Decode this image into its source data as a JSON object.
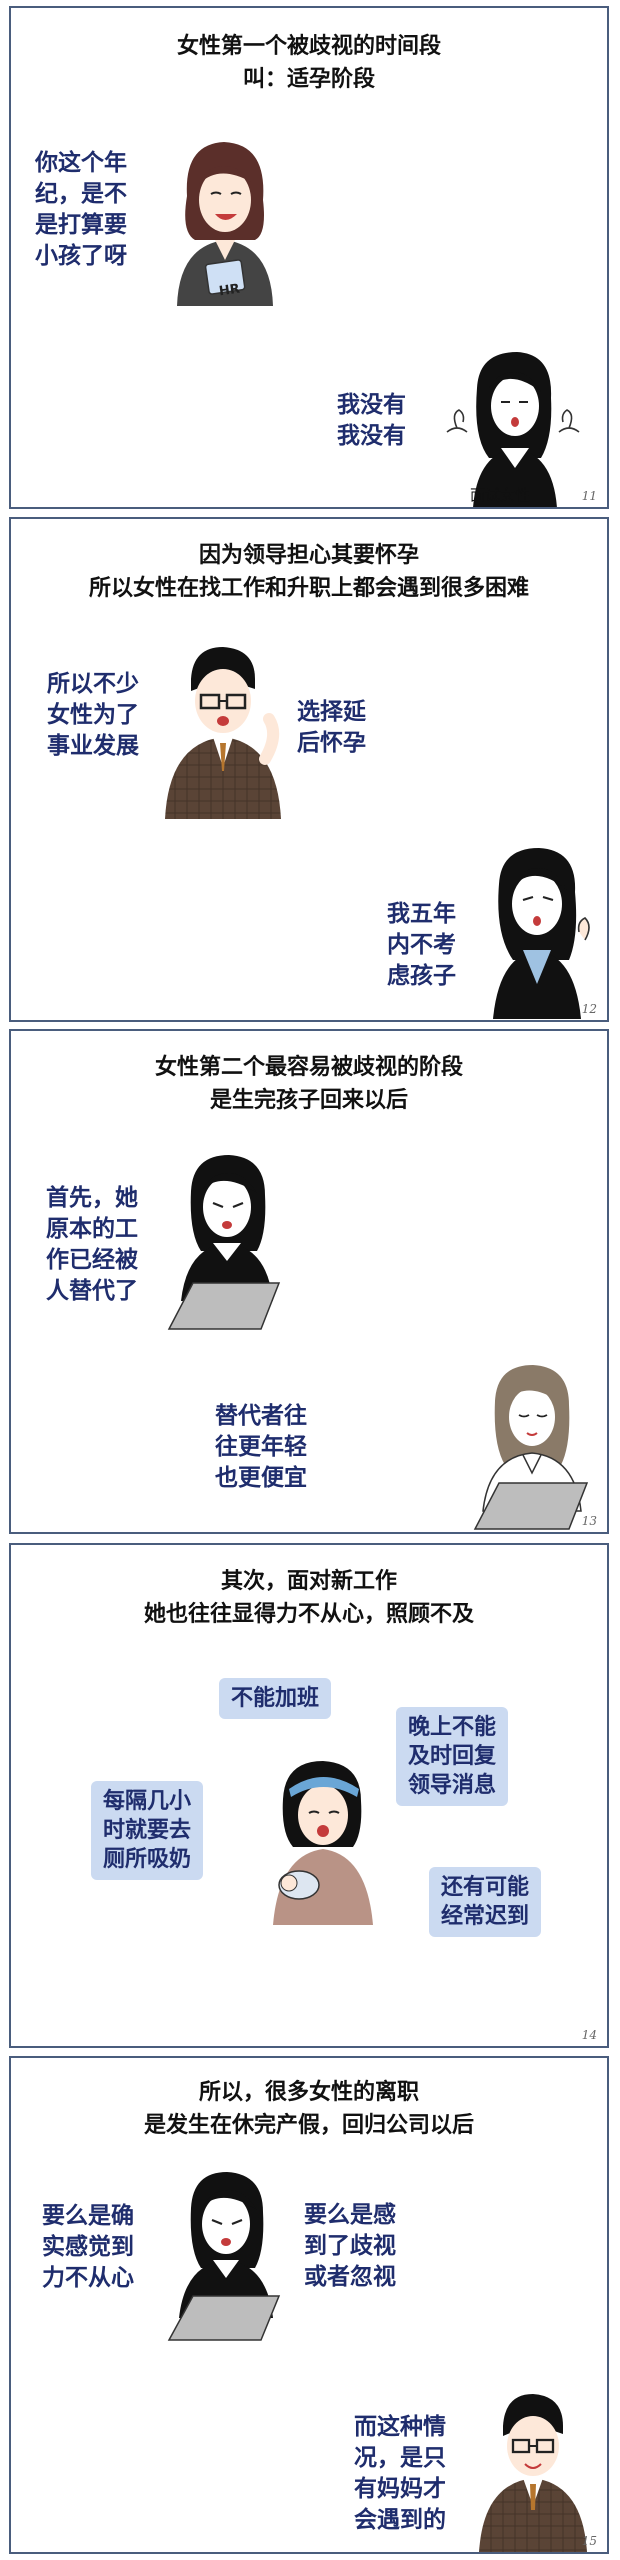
{
  "panels": [
    {
      "title_lines": [
        "女性第一个被歧视的时间段",
        "叫：适孕阶段"
      ],
      "speech_a_lines": [
        "你这个年",
        "纪，是不",
        "是打算要",
        "小孩了呀"
      ],
      "speech_b_lines": [
        "我没有",
        "我没有"
      ],
      "badge": "HR",
      "caption": "面试女性",
      "number": "11"
    },
    {
      "title_lines": [
        "因为领导担心其要怀孕",
        "所以女性在找工作和升职上都会遇到很多困难"
      ],
      "speech_a_lines": [
        "所以不少",
        "女性为了",
        "事业发展"
      ],
      "speech_b_lines": [
        "选择延",
        "后怀孕"
      ],
      "speech_c_lines": [
        "我五年",
        "内不考",
        "虑孩子"
      ],
      "number": "12"
    },
    {
      "title_lines": [
        "女性第二个最容易被歧视的阶段",
        "是生完孩子回来以后"
      ],
      "speech_a_lines": [
        "首先，她",
        "原本的工",
        "作已经被",
        "人替代了"
      ],
      "speech_b_lines": [
        "替代者往",
        "往更年轻",
        "也更便宜"
      ],
      "number": "13"
    },
    {
      "title_lines": [
        "其次，面对新工作",
        "她也往往显得力不从心，照顾不及"
      ],
      "bubbles": [
        [
          "不能加班"
        ],
        [
          "晚上不能",
          "及时回复",
          "领导消息"
        ],
        [
          "每隔几小",
          "时就要去",
          "厕所吸奶"
        ],
        [
          "还有可能",
          "经常迟到"
        ]
      ],
      "number": "14"
    },
    {
      "title_lines": [
        "所以，很多女性的离职",
        "是发生在休完产假，回归公司以后"
      ],
      "speech_a_lines": [
        "要么是确",
        "实感觉到",
        "力不从心"
      ],
      "speech_b_lines": [
        "要么是感",
        "到了歧视",
        "或者忽视"
      ],
      "speech_c_lines": [
        "而这种情",
        "况，是只",
        "有妈妈才",
        "会遇到的"
      ],
      "number": "15"
    }
  ],
  "colors": {
    "border": "#4a5d7d",
    "speech_text": "#1f2d6d",
    "bubble_bg": "#cbdaf1"
  }
}
